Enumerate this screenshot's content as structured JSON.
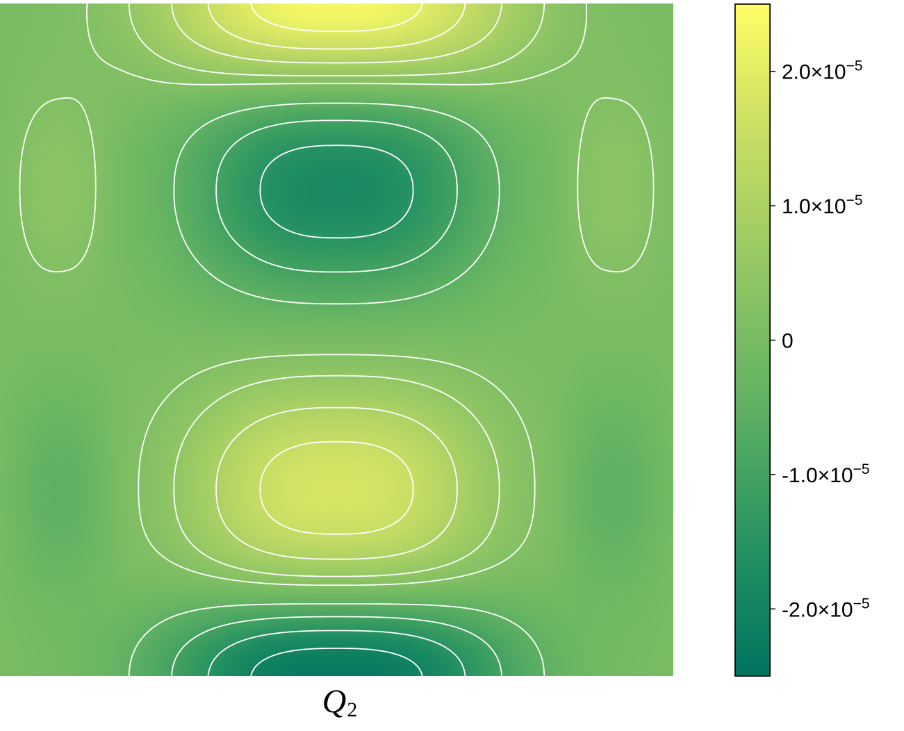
{
  "chart_data": {
    "type": "heatmap",
    "title": "",
    "xlabel_symbol": "Q",
    "xlabel_subscript": "2",
    "ylabel": "",
    "colorbar": {
      "range": [
        -2.5e-05,
        2.5e-05
      ],
      "colors": [
        "#00755f",
        "#1a8a62",
        "#3fa061",
        "#67b463",
        "#8ac364",
        "#b0d364",
        "#d6e464",
        "#ffff66"
      ],
      "ticks": [
        {
          "value": 2e-05,
          "mantissa": "2.0",
          "times": "×10",
          "exponent": "−5"
        },
        {
          "value": 1e-05,
          "mantissa": "1.0",
          "times": "×10",
          "exponent": "−5"
        },
        {
          "value": 0,
          "mantissa": "0",
          "times": "",
          "exponent": ""
        },
        {
          "value": -1e-05,
          "mantissa": "-1.0",
          "times": "×10",
          "exponent": "−5"
        },
        {
          "value": -2e-05,
          "mantissa": "-2.0",
          "times": "×10",
          "exponent": "−5"
        }
      ]
    },
    "field": {
      "description_of_structure": "standing-wave mode",
      "amplitude": 2.5e-05,
      "x_range": [
        0,
        1
      ],
      "y_range": [
        0,
        1
      ],
      "modes": [
        {
          "amp": 1.8e-05,
          "cx": 0.5,
          "cy": 0.275,
          "sign": -1
        },
        {
          "amp": 1.8e-05,
          "cx": 0.5,
          "cy": 0.725,
          "sign": 1
        },
        {
          "amp": 2.4e-05,
          "cx": 0.5,
          "cy": 0.0,
          "sign": 1
        },
        {
          "amp": 2.4e-05,
          "cx": 0.5,
          "cy": 1.0,
          "sign": -1
        },
        {
          "amp": 4e-06,
          "cx": 0.09,
          "cy": 0.275,
          "sign": 1
        },
        {
          "amp": 4e-06,
          "cx": 0.91,
          "cy": 0.275,
          "sign": 1
        },
        {
          "amp": 5e-06,
          "cx": 0.09,
          "cy": 0.725,
          "sign": -1
        },
        {
          "amp": 5e-06,
          "cx": 0.91,
          "cy": 0.725,
          "sign": -1
        }
      ],
      "contour_levels": [
        -2e-05,
        -1.5e-05,
        -1e-05,
        -5e-06,
        2e-06,
        5e-06,
        1e-05,
        1.5e-05,
        2e-05
      ]
    }
  }
}
